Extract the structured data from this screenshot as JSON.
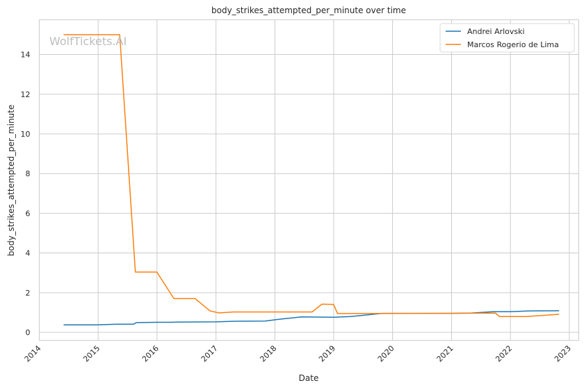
{
  "chart_data": {
    "type": "line",
    "title": "body_strikes_attempted_per_minute over time",
    "xlabel": "Date",
    "ylabel": "body_strikes_attempted_per_minute",
    "watermark": "WolfTickets.AI",
    "xlim": [
      "2014-01-01",
      "2023-03-01"
    ],
    "ylim": [
      -0.4,
      15.75
    ],
    "x_ticks": [
      "2014",
      "2015",
      "2016",
      "2017",
      "2018",
      "2019",
      "2020",
      "2021",
      "2022",
      "2023"
    ],
    "y_ticks": [
      0,
      2,
      4,
      6,
      8,
      10,
      12,
      14
    ],
    "grid": true,
    "legend_position": "top-right",
    "series": [
      {
        "name": "Andrei Arlovski",
        "color": "#1f77b4",
        "points": [
          [
            "2014-06-01",
            0.38
          ],
          [
            "2014-12-20",
            0.38
          ],
          [
            "2015-05-01",
            0.41
          ],
          [
            "2015-08-10",
            0.41
          ],
          [
            "2015-08-25",
            0.49
          ],
          [
            "2015-12-31",
            0.51
          ],
          [
            "2016-04-10",
            0.51
          ],
          [
            "2016-04-25",
            0.52
          ],
          [
            "2016-12-31",
            0.53
          ],
          [
            "2017-05-01",
            0.56
          ],
          [
            "2017-11-01",
            0.57
          ],
          [
            "2018-01-15",
            0.65
          ],
          [
            "2018-06-15",
            0.78
          ],
          [
            "2019-01-01",
            0.76
          ],
          [
            "2019-04-15",
            0.8
          ],
          [
            "2019-07-01",
            0.86
          ],
          [
            "2019-10-30",
            0.96
          ],
          [
            "2020-12-31",
            0.96
          ],
          [
            "2021-05-01",
            0.97
          ],
          [
            "2021-09-15",
            1.04
          ],
          [
            "2022-01-01",
            1.04
          ],
          [
            "2022-04-15",
            1.08
          ],
          [
            "2022-10-30",
            1.09
          ]
        ]
      },
      {
        "name": "Marcos Rogerio de Lima",
        "color": "#ff7f0e",
        "points": [
          [
            "2014-06-01",
            15.0
          ],
          [
            "2015-05-15",
            15.0
          ],
          [
            "2015-08-20",
            3.04
          ],
          [
            "2015-12-31",
            3.04
          ],
          [
            "2016-04-15",
            1.7
          ],
          [
            "2016-08-25",
            1.7
          ],
          [
            "2016-11-25",
            1.08
          ],
          [
            "2017-01-20",
            0.98
          ],
          [
            "2017-04-20",
            1.03
          ],
          [
            "2018-08-20",
            1.03
          ],
          [
            "2018-10-20",
            1.42
          ],
          [
            "2018-12-31",
            1.41
          ],
          [
            "2019-01-25",
            0.95
          ],
          [
            "2019-10-01",
            0.95
          ],
          [
            "2021-10-01",
            0.97
          ],
          [
            "2021-10-25",
            0.8
          ],
          [
            "2022-04-10",
            0.8
          ],
          [
            "2022-10-30",
            0.91
          ]
        ]
      }
    ]
  }
}
